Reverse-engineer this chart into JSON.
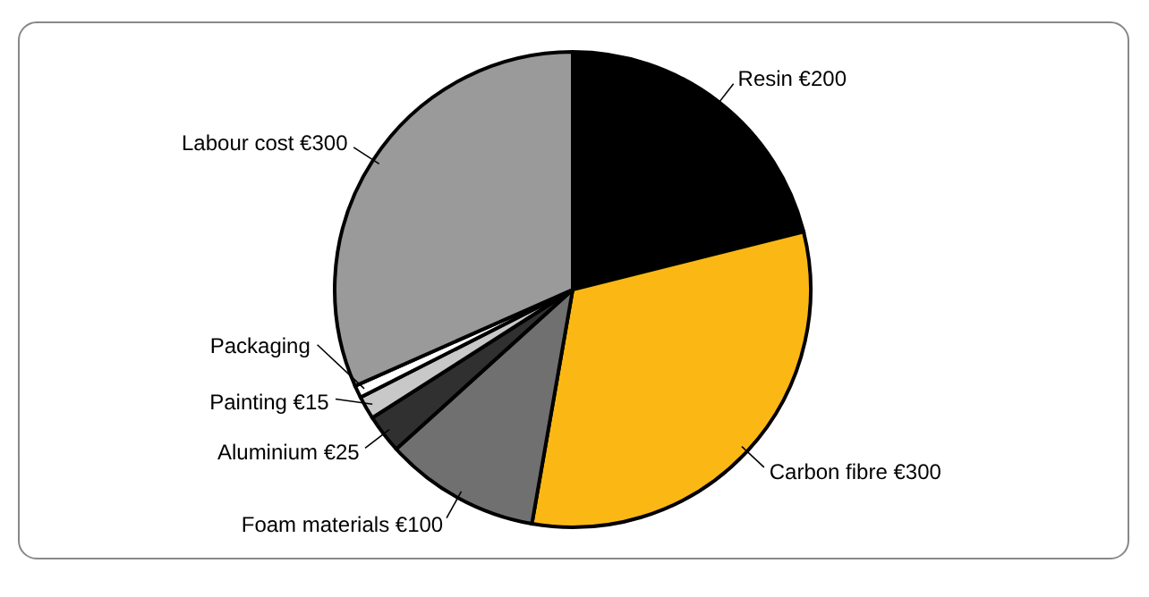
{
  "chart_data": {
    "type": "pie",
    "categories": [
      "Resin €200",
      "Carbon fibre €300",
      "Foam materials €100",
      "Aluminium €25",
      "Painting €15",
      "Packaging",
      "Labour cost €300"
    ],
    "values": [
      200,
      300,
      100,
      25,
      15,
      8,
      300
    ],
    "colors": [
      "#000000",
      "#fbb814",
      "#707070",
      "#303030",
      "#c8c8c8",
      "#ffffff",
      "#9a9a9a"
    ]
  }
}
